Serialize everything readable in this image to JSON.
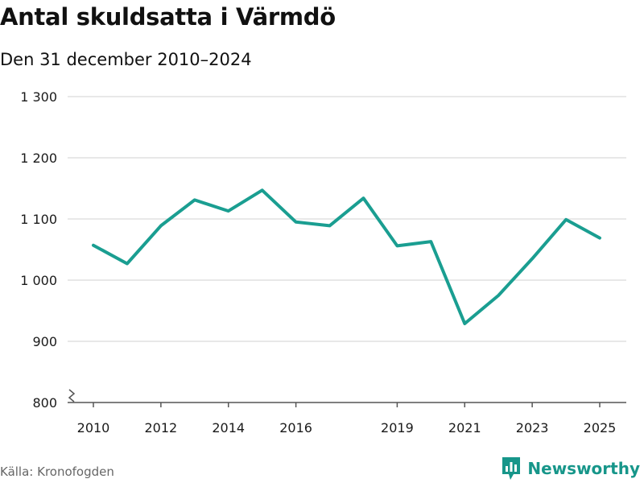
{
  "header": {
    "title": "Antal skuldsatta i Värmdö",
    "subtitle": "Den 31 december 2010–2024"
  },
  "footer": {
    "source": "Källa: Kronofogden",
    "brand": "Newsworthy"
  },
  "colors": {
    "line": "#1a9e91",
    "grid": "#d9d9d9",
    "axis": "#555555",
    "text": "#1a1a1a",
    "brand": "#17968a"
  },
  "chart_data": {
    "type": "line",
    "title": "Antal skuldsatta i Värmdö",
    "subtitle": "Den 31 december 2010–2024",
    "xlabel": "",
    "ylabel": "",
    "ylim": [
      800,
      1300
    ],
    "y_axis_break": true,
    "grid": true,
    "legend": "none",
    "x_ticks": [
      2010,
      2012,
      2014,
      2016,
      2019,
      2021,
      2023,
      2025
    ],
    "y_ticks": [
      800,
      900,
      1000,
      1100,
      1200,
      1300
    ],
    "y_tick_labels": [
      "800",
      "900",
      "1 000",
      "1 100",
      "1 200",
      "1 300"
    ],
    "series": [
      {
        "x": [
          2010,
          2011,
          2012,
          2013,
          2014,
          2015,
          2016,
          2017,
          2018,
          2019,
          2020,
          2021,
          2022,
          2023,
          2024,
          2025
        ],
        "values": [
          1057,
          1027,
          1089,
          1131,
          1113,
          1147,
          1095,
          1089,
          1134,
          1056,
          1063,
          929,
          975,
          1035,
          1099,
          1069
        ]
      }
    ]
  }
}
